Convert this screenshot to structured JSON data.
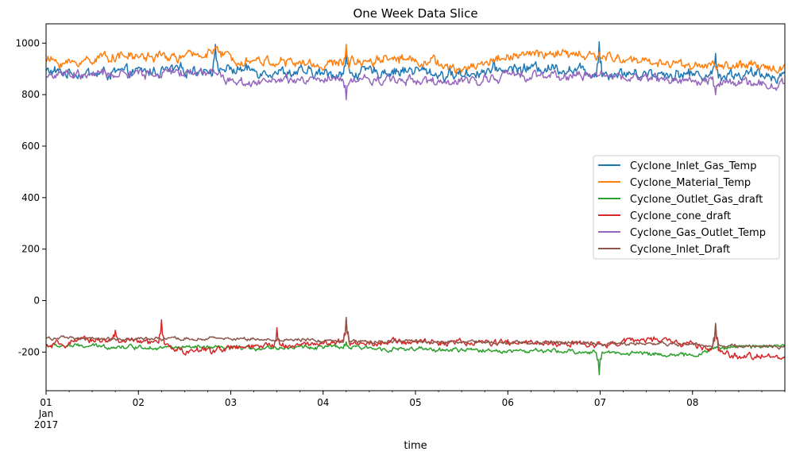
{
  "chart_data": {
    "type": "line",
    "title": "One Week Data Slice",
    "xlabel": "time",
    "ylabel": "",
    "x_start": "2017-01-01",
    "x_end": "2017-01-09",
    "ylim": [
      -350,
      1075
    ],
    "grid": false,
    "legend_position": "right",
    "yticks": [
      -200,
      0,
      200,
      400,
      600,
      800,
      1000
    ],
    "xticks": [
      {
        "x": "2017-01-01",
        "label": "01",
        "sub": [
          "Jan",
          "2017"
        ]
      },
      {
        "x": "2017-01-02",
        "label": "02"
      },
      {
        "x": "2017-01-03",
        "label": "03"
      },
      {
        "x": "2017-01-04",
        "label": "04"
      },
      {
        "x": "2017-01-05",
        "label": "05"
      },
      {
        "x": "2017-01-06",
        "label": "06"
      },
      {
        "x": "2017-01-07",
        "label": "07"
      },
      {
        "x": "2017-01-08",
        "label": "08"
      }
    ],
    "series": [
      {
        "name": "Cyclone_Inlet_Gas_Temp",
        "color": "#1f77b4",
        "base": 885,
        "noise": 16,
        "keypoints": [
          [
            "2017-01-01 00:00",
            890
          ],
          [
            "2017-01-01 12:00",
            880
          ],
          [
            "2017-01-02 12:00",
            895
          ],
          [
            "2017-01-02 20:00",
            900
          ],
          [
            "2017-01-03 12:00",
            890
          ],
          [
            "2017-01-04 00:00",
            880
          ],
          [
            "2017-01-05 00:00",
            895
          ],
          [
            "2017-01-05 08:00",
            875
          ],
          [
            "2017-01-06 00:00",
            900
          ],
          [
            "2017-01-06 12:00",
            905
          ],
          [
            "2017-01-07 00:00",
            885
          ],
          [
            "2017-01-08 00:00",
            880
          ],
          [
            "2017-01-09 00:00",
            875
          ]
        ],
        "spikes": [
          [
            "2017-01-02 20:00",
            995
          ],
          [
            "2017-01-04 06:00",
            960
          ],
          [
            "2017-01-06 23:50",
            1005
          ],
          [
            "2017-01-08 06:00",
            960
          ]
        ]
      },
      {
        "name": "Cyclone_Material_Temp",
        "color": "#ff7f0e",
        "base": 935,
        "noise": 14,
        "keypoints": [
          [
            "2017-01-01 00:00",
            935
          ],
          [
            "2017-01-01 06:00",
            920
          ],
          [
            "2017-01-01 16:00",
            950
          ],
          [
            "2017-01-02 12:00",
            945
          ],
          [
            "2017-01-02 20:00",
            970
          ],
          [
            "2017-01-03 00:00",
            940
          ],
          [
            "2017-01-04 00:00",
            915
          ],
          [
            "2017-01-04 18:00",
            945
          ],
          [
            "2017-01-05 06:00",
            925
          ],
          [
            "2017-01-05 10:00",
            890
          ],
          [
            "2017-01-06 00:00",
            950
          ],
          [
            "2017-01-06 12:00",
            960
          ],
          [
            "2017-01-07 00:00",
            945
          ],
          [
            "2017-01-08 00:00",
            915
          ],
          [
            "2017-01-09 00:00",
            905
          ]
        ],
        "spikes": [
          [
            "2017-01-02 20:00",
            985
          ],
          [
            "2017-01-04 06:00",
            995
          ],
          [
            "2017-01-06 23:50",
            965
          ]
        ]
      },
      {
        "name": "Cyclone_Outlet_Gas_draft",
        "color": "#2ca02c",
        "base": -185,
        "noise": 6,
        "keypoints": [
          [
            "2017-01-01 00:00",
            -175
          ],
          [
            "2017-01-02 00:00",
            -180
          ],
          [
            "2017-01-03 00:00",
            -185
          ],
          [
            "2017-01-04 00:00",
            -180
          ],
          [
            "2017-01-05 00:00",
            -190
          ],
          [
            "2017-01-06 00:00",
            -195
          ],
          [
            "2017-01-07 00:00",
            -200
          ],
          [
            "2017-01-07 12:00",
            -205
          ],
          [
            "2017-01-08 00:00",
            -215
          ],
          [
            "2017-01-08 06:00",
            -185
          ],
          [
            "2017-01-09 00:00",
            -170
          ]
        ],
        "spikes": [
          [
            "2017-01-04 06:00",
            -160
          ],
          [
            "2017-01-06 23:50",
            -288
          ]
        ]
      },
      {
        "name": "Cyclone_cone_draft",
        "color": "#d62728",
        "base": -170,
        "noise": 9,
        "keypoints": [
          [
            "2017-01-01 00:00",
            -180
          ],
          [
            "2017-01-01 12:00",
            -150
          ],
          [
            "2017-01-02 06:00",
            -165
          ],
          [
            "2017-01-02 12:00",
            -200
          ],
          [
            "2017-01-03 00:00",
            -185
          ],
          [
            "2017-01-03 12:00",
            -175
          ],
          [
            "2017-01-04 00:00",
            -165
          ],
          [
            "2017-01-05 00:00",
            -160
          ],
          [
            "2017-01-06 00:00",
            -165
          ],
          [
            "2017-01-07 00:00",
            -170
          ],
          [
            "2017-01-07 12:00",
            -150
          ],
          [
            "2017-01-08 00:00",
            -170
          ],
          [
            "2017-01-08 12:00",
            -220
          ],
          [
            "2017-01-09 00:00",
            -215
          ]
        ],
        "spikes": [
          [
            "2017-01-02 06:00",
            -75
          ],
          [
            "2017-01-01 18:00",
            -115
          ],
          [
            "2017-01-03 12:00",
            -105
          ],
          [
            "2017-01-04 06:00",
            -70
          ],
          [
            "2017-01-06 23:50",
            -160
          ],
          [
            "2017-01-08 06:00",
            -90
          ]
        ]
      },
      {
        "name": "Cyclone_Gas_Outlet_Temp",
        "color": "#9467bd",
        "base": 870,
        "noise": 13,
        "keypoints": [
          [
            "2017-01-01 00:00",
            875
          ],
          [
            "2017-01-02 00:00",
            880
          ],
          [
            "2017-01-02 20:00",
            890
          ],
          [
            "2017-01-03 00:00",
            850
          ],
          [
            "2017-01-04 00:00",
            855
          ],
          [
            "2017-01-05 00:00",
            860
          ],
          [
            "2017-01-05 08:00",
            840
          ],
          [
            "2017-01-06 00:00",
            875
          ],
          [
            "2017-01-07 00:00",
            875
          ],
          [
            "2017-01-08 00:00",
            855
          ],
          [
            "2017-01-09 00:00",
            835
          ]
        ],
        "spikes": [
          [
            "2017-01-04 06:00",
            780
          ],
          [
            "2017-01-08 06:00",
            800
          ]
        ]
      },
      {
        "name": "Cyclone_Inlet_Draft",
        "color": "#8c564b",
        "base": -150,
        "noise": 5,
        "keypoints": [
          [
            "2017-01-01 00:00",
            -145
          ],
          [
            "2017-01-02 00:00",
            -150
          ],
          [
            "2017-01-03 00:00",
            -148
          ],
          [
            "2017-01-04 00:00",
            -155
          ],
          [
            "2017-01-05 00:00",
            -160
          ],
          [
            "2017-01-06 00:00",
            -162
          ],
          [
            "2017-01-07 00:00",
            -165
          ],
          [
            "2017-01-08 00:00",
            -170
          ],
          [
            "2017-01-09 00:00",
            -180
          ]
        ],
        "spikes": [
          [
            "2017-01-04 06:00",
            -65
          ],
          [
            "2017-01-06 23:50",
            -170
          ],
          [
            "2017-01-08 06:00",
            -88
          ]
        ]
      }
    ]
  }
}
